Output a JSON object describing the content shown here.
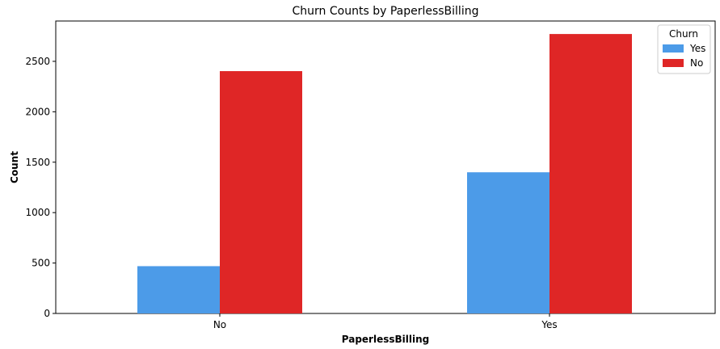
{
  "chart_data": {
    "type": "bar",
    "title": "Churn Counts by PaperlessBilling",
    "xlabel": "PaperlessBilling",
    "ylabel": "Count",
    "categories": [
      "No",
      "Yes"
    ],
    "series": [
      {
        "name": "Yes",
        "values": [
          469,
          1400
        ],
        "color": "#4c9be8"
      },
      {
        "name": "No",
        "values": [
          2403,
          2771
        ],
        "color": "#df2626"
      }
    ],
    "ylim": [
      0,
      2900
    ],
    "yticks": [
      0,
      500,
      1000,
      1500,
      2000,
      2500
    ],
    "grid": false,
    "legend": {
      "title": "Churn",
      "placement": "top-right"
    }
  }
}
